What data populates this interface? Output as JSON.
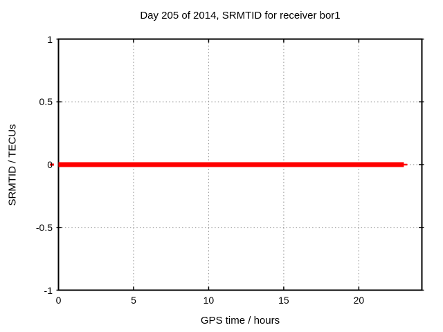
{
  "chart_data": {
    "type": "line",
    "title": "Day 205 of 2014, SRMTID for receiver bor1",
    "xlabel": "GPS time / hours",
    "ylabel": "SRMTID / TECUs",
    "xlim": [
      0,
      24.2
    ],
    "ylim": [
      -1,
      1
    ],
    "xticks": [
      0,
      5,
      10,
      15,
      20
    ],
    "xtick_labels": [
      "0",
      "5",
      "10",
      "15",
      "20"
    ],
    "yticks": [
      1,
      0.5,
      0,
      -0.5,
      -1
    ],
    "ytick_labels": [
      "1",
      "0.5",
      "0",
      "-0.5",
      "-1"
    ],
    "grid": true,
    "legend_position": "none",
    "series": [
      {
        "name": "SRMTID",
        "color": "#ff0000",
        "linewidth": 7,
        "x": [
          0,
          23
        ],
        "y": [
          0,
          0
        ]
      }
    ],
    "colors": {
      "background": "#ffffff",
      "border": "#000000",
      "grid": "#9a9a9a",
      "text": "#000000"
    }
  }
}
